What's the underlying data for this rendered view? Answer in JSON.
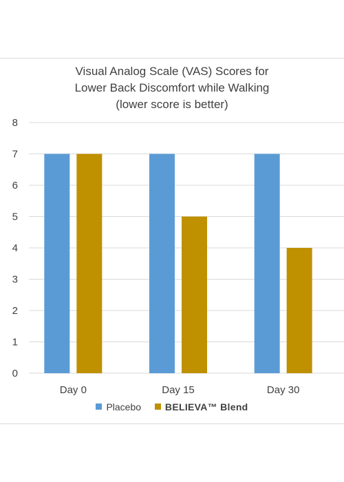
{
  "chart_data": {
    "type": "bar",
    "title_lines": [
      "Visual Analog Scale (VAS) Scores for",
      "Lower Back Discomfort while Walking",
      "(lower score is better)"
    ],
    "categories": [
      "Day 0",
      "Day 15",
      "Day 30"
    ],
    "series": [
      {
        "name": "Placebo",
        "values": [
          7,
          7,
          7
        ],
        "color": "#5b9bd5"
      },
      {
        "name": "BELIEVA™ Blend",
        "values": [
          7,
          5,
          4
        ],
        "color": "#bf9000"
      }
    ],
    "ylim": [
      0,
      8
    ],
    "yticks": [
      0,
      1,
      2,
      3,
      4,
      5,
      6,
      7,
      8
    ],
    "grid": true,
    "legend_position": "bottom"
  }
}
